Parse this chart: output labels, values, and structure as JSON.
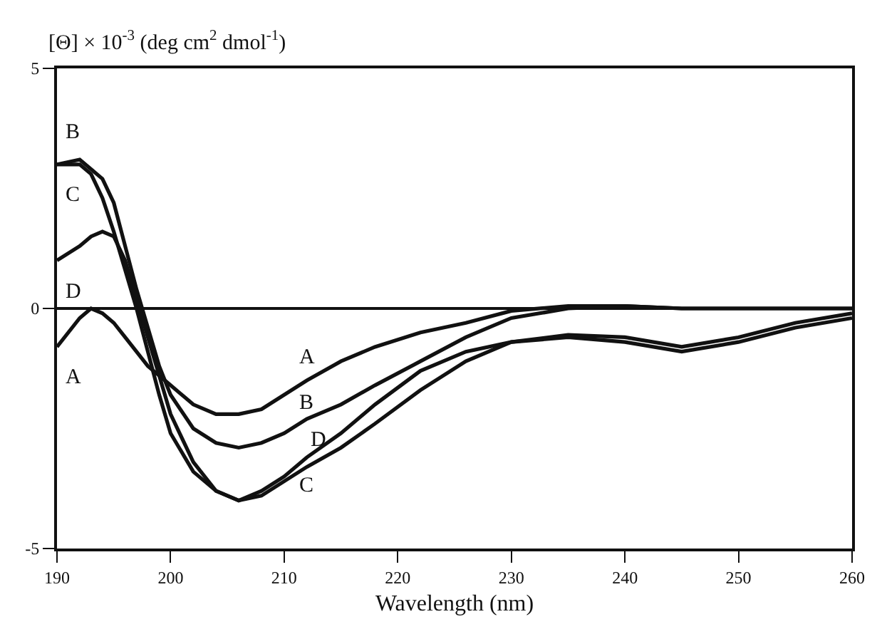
{
  "chart_data": {
    "type": "line",
    "xlabel": "Wavelength (nm)",
    "ylabel": "[Θ] × 10$^{-3}$ (deg cm$^{2}$ dmol$^{-1}$)",
    "xlim": [
      190,
      260
    ],
    "xticks": [
      190,
      200,
      210,
      220,
      230,
      240,
      250,
      260
    ],
    "ylim": [
      -5,
      5
    ],
    "yticks": [
      -5,
      0,
      5
    ],
    "grid": false,
    "legend": false,
    "marker": "none",
    "line_style": "solid",
    "x": [
      190,
      192,
      193,
      194,
      195,
      196,
      197,
      198,
      199,
      200,
      202,
      204,
      206,
      208,
      210,
      212,
      215,
      218,
      222,
      226,
      230,
      235,
      240,
      245,
      250,
      255,
      260
    ],
    "series": [
      {
        "name": "A",
        "color": "#111111",
        "values": [
          -0.8,
          -0.2,
          0.0,
          -0.1,
          -0.3,
          -0.6,
          -0.9,
          -1.2,
          -1.4,
          -1.6,
          -2.0,
          -2.2,
          -2.2,
          -2.1,
          -1.8,
          -1.5,
          -1.1,
          -0.8,
          -0.5,
          -0.3,
          -0.05,
          0.05,
          0.05,
          0.0,
          0.0,
          0.0,
          0.0
        ]
      },
      {
        "name": "B",
        "color": "#111111",
        "values": [
          3.0,
          3.1,
          2.9,
          2.7,
          2.2,
          1.3,
          0.4,
          -0.4,
          -1.2,
          -1.8,
          -2.5,
          -2.8,
          -2.9,
          -2.8,
          -2.6,
          -2.3,
          -2.0,
          -1.6,
          -1.1,
          -0.6,
          -0.2,
          0.0,
          0.05,
          0.0,
          0.0,
          0.0,
          0.0
        ]
      },
      {
        "name": "C",
        "color": "#111111",
        "values": [
          3.0,
          3.0,
          2.8,
          2.3,
          1.6,
          0.8,
          0.0,
          -0.9,
          -1.8,
          -2.6,
          -3.4,
          -3.8,
          -4.0,
          -3.9,
          -3.6,
          -3.3,
          -2.9,
          -2.4,
          -1.7,
          -1.1,
          -0.7,
          -0.6,
          -0.7,
          -0.9,
          -0.7,
          -0.4,
          -0.2
        ]
      },
      {
        "name": "D",
        "color": "#111111",
        "values": [
          1.0,
          1.3,
          1.5,
          1.6,
          1.5,
          1.0,
          0.2,
          -0.6,
          -1.4,
          -2.2,
          -3.2,
          -3.8,
          -4.0,
          -3.8,
          -3.5,
          -3.1,
          -2.6,
          -2.0,
          -1.3,
          -0.9,
          -0.7,
          -0.55,
          -0.6,
          -0.8,
          -0.6,
          -0.3,
          -0.1
        ]
      }
    ],
    "ref_lines": [
      {
        "axis": "y",
        "value": 0,
        "color": "#111111",
        "line_style": "solid"
      }
    ]
  }
}
